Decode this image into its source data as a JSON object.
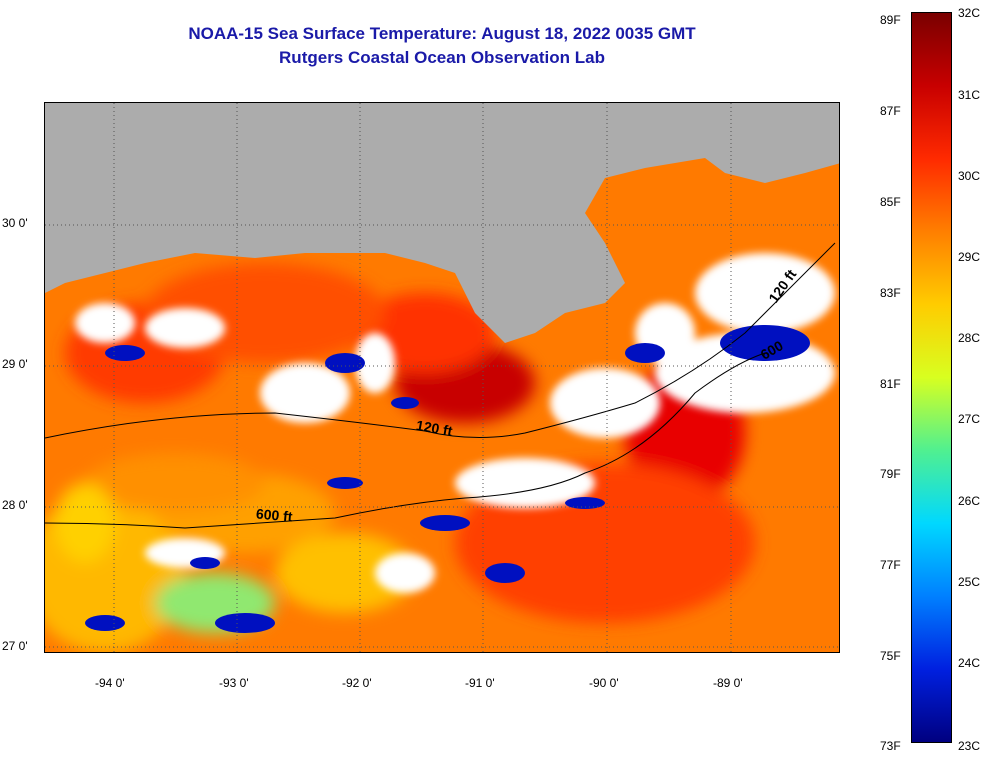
{
  "title": {
    "line1": "NOAA-15 Sea Surface Temperature:  August 18, 2022 0035 GMT",
    "line2": "Rutgers Coastal Ocean Observation Lab"
  },
  "axes": {
    "longitude_labels": [
      "-94 0'",
      "-93 0'",
      "-92 0'",
      "-91 0'",
      "-90 0'",
      "-89 0'"
    ],
    "latitude_labels": [
      "30 0'",
      "29 0'",
      "28 0'",
      "27 0'"
    ]
  },
  "contours": {
    "labels": [
      "120 ft",
      "600 ft",
      "120 ft",
      "600"
    ]
  },
  "colorbar": {
    "fahrenheit": [
      "89F",
      "87F",
      "85F",
      "83F",
      "81F",
      "79F",
      "77F",
      "75F",
      "73F"
    ],
    "celsius": [
      "32C",
      "31C",
      "30C",
      "29C",
      "28C",
      "27C",
      "26C",
      "25C",
      "24C",
      "23C"
    ],
    "colors": [
      "#7a0000",
      "#c80000",
      "#ff2a00",
      "#ff7f00",
      "#ffcc00",
      "#d8ff20",
      "#50f090",
      "#00d8ff",
      "#0080ff",
      "#0020e0",
      "#000080"
    ]
  },
  "colors": {
    "land": "#acacac",
    "title": "#1a1aa8",
    "cloud": "#ffffff"
  }
}
